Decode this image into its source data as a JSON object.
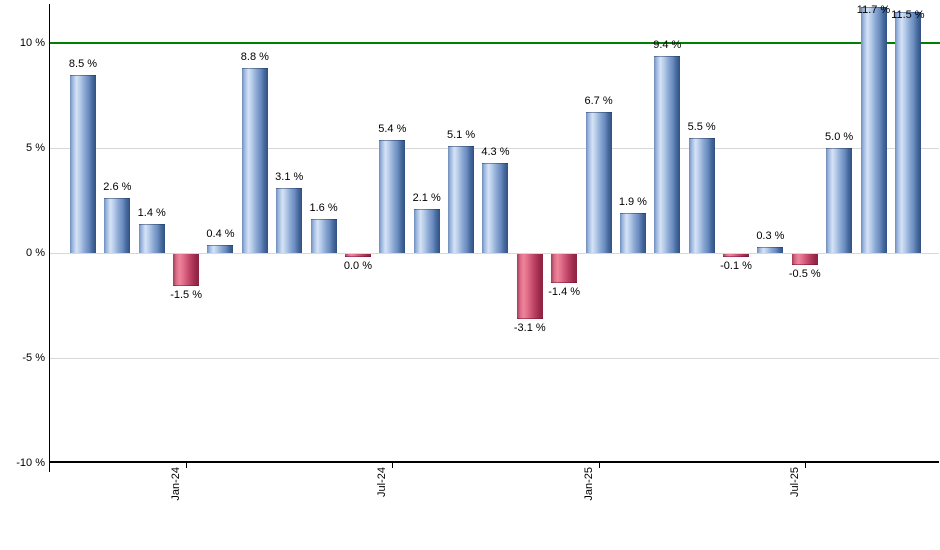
{
  "chart_data": {
    "type": "bar",
    "title": "",
    "description": "Monthly returns bar chart",
    "values": [
      8.5,
      2.6,
      1.4,
      -1.5,
      0.4,
      8.8,
      3.1,
      1.6,
      0.0,
      5.4,
      2.1,
      5.1,
      4.3,
      -3.1,
      -1.4,
      6.7,
      1.9,
      9.4,
      5.5,
      -0.1,
      0.3,
      -0.5,
      5.0,
      11.7,
      11.5
    ],
    "bar_labels": [
      "8.5 %",
      "2.6 %",
      "1.4 %",
      "-1.5 %",
      "0.4 %",
      "8.8 %",
      "3.1 %",
      "1.6 %",
      "0.0 %",
      "5.4 %",
      "2.1 %",
      "5.1 %",
      "4.3 %",
      "-3.1 %",
      "-1.4 %",
      "6.7 %",
      "1.9 %",
      "9.4 %",
      "5.5 %",
      "-0.1 %",
      "0.3 %",
      "-0.5 %",
      "5.0 %",
      "11.7 %",
      "11.5 %"
    ],
    "x_tick_labels": [
      "Jan-24",
      "Jul-24",
      "Jan-25",
      "Jul-25"
    ],
    "x_tick_bar_indices": [
      3,
      9,
      15,
      21
    ],
    "y_tick_labels": [
      "10 %",
      "5 %",
      "0 %",
      "-5 %",
      "-10 %"
    ],
    "y_tick_values": [
      10,
      5,
      0,
      -5,
      -10
    ],
    "ylim": [
      -10,
      11.8
    ],
    "grid": "horizontal",
    "legend": "none",
    "reference_line": {
      "value": 10,
      "color": "#008000"
    },
    "colors": {
      "positive_bar_main": "#6a8cbf",
      "positive_bar_highlight": "#d6e3f5",
      "positive_bar_dark": "#30507f",
      "negative_bar_main": "#cc5374",
      "negative_bar_highlight": "#f08399",
      "negative_bar_dark": "#8c2240",
      "gridline": "#d8d8d8",
      "axis": "#000000",
      "text": "#000000"
    },
    "zero_value_rendered_as_negative_sliver": true
  }
}
